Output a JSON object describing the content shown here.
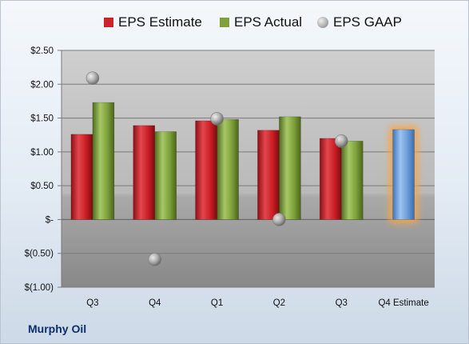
{
  "chart_data": {
    "type": "bar",
    "categories": [
      "Q3",
      "Q4",
      "Q1",
      "Q2",
      "Q3",
      "Q4 Estimate"
    ],
    "series": [
      {
        "name": "EPS Estimate",
        "values": [
          1.26,
          1.39,
          1.46,
          1.32,
          1.2,
          1.33
        ],
        "color": "#cc2229"
      },
      {
        "name": "EPS Actual",
        "values": [
          1.73,
          1.3,
          1.48,
          1.52,
          1.16,
          null
        ],
        "color": "#7fa03c"
      },
      {
        "name": "EPS GAAP",
        "values": [
          2.09,
          -0.59,
          1.49,
          0.0,
          1.16,
          null
        ],
        "color": "#a6a6a6",
        "type": "scatter"
      }
    ],
    "highlight": {
      "category": "Q4 Estimate",
      "color": "#6a9bd8",
      "glow": "#f5a64a"
    },
    "yticks": [
      "$2.50",
      "$2.00",
      "$1.50",
      "$1.00",
      "$0.50",
      "$-",
      "$(0.50)",
      "$(1.00)"
    ],
    "ylim": [
      -1.0,
      2.5
    ],
    "grid": true,
    "legend_position": "top"
  },
  "legend": {
    "estimate": "EPS Estimate",
    "actual": "EPS Actual",
    "gaap": "EPS GAAP"
  },
  "footer": {
    "company": "Murphy Oil"
  }
}
